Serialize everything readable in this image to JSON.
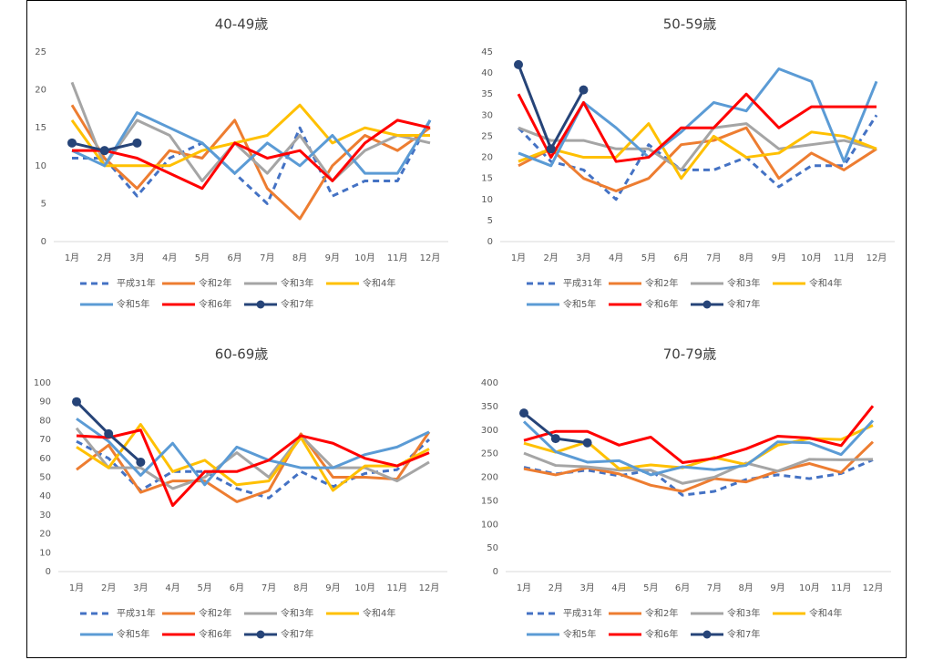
{
  "chart_data": [
    {
      "type": "line",
      "title": "40-49歳",
      "categories": [
        "1月",
        "2月",
        "3月",
        "4月",
        "5月",
        "6月",
        "7月",
        "8月",
        "9月",
        "10月",
        "11月",
        "12月"
      ],
      "ylim": [
        0,
        25
      ],
      "yticks": [
        0,
        5,
        10,
        15,
        20,
        25
      ],
      "series": [
        {
          "name": "平成31年",
          "color": "#4472c4",
          "dashed": true,
          "values": [
            11,
            11,
            6,
            11,
            13,
            9,
            5,
            15,
            6,
            8,
            8,
            16
          ]
        },
        {
          "name": "令和2年",
          "color": "#ed7d31",
          "values": [
            18,
            11,
            7,
            12,
            11,
            16,
            7,
            3,
            10,
            14,
            12,
            15
          ]
        },
        {
          "name": "令和3年",
          "color": "#a5a5a5",
          "values": [
            21,
            10,
            16,
            14,
            8,
            13,
            9,
            14,
            8,
            12,
            14,
            13
          ]
        },
        {
          "name": "令和4年",
          "color": "#ffc000",
          "values": [
            16,
            10,
            10,
            10,
            12,
            13,
            14,
            18,
            13,
            15,
            14,
            14
          ]
        },
        {
          "name": "令和5年",
          "color": "#5b9bd5",
          "values": [
            12,
            10,
            17,
            15,
            13,
            9,
            13,
            10,
            14,
            9,
            9,
            16
          ]
        },
        {
          "name": "令和6年",
          "color": "#ff0000",
          "values": [
            12,
            12,
            11,
            9,
            7,
            13,
            11,
            12,
            8,
            13,
            16,
            15
          ]
        },
        {
          "name": "令和7年",
          "color": "#264478",
          "markers": true,
          "values": [
            13,
            12,
            13,
            null,
            null,
            null,
            null,
            null,
            null,
            null,
            null,
            null
          ]
        }
      ]
    },
    {
      "type": "line",
      "title": "50-59歳",
      "categories": [
        "1月",
        "2月",
        "3月",
        "4月",
        "5月",
        "6月",
        "7月",
        "8月",
        "9月",
        "10月",
        "11月",
        "12月"
      ],
      "ylim": [
        0,
        45
      ],
      "yticks": [
        0,
        5,
        10,
        15,
        20,
        25,
        30,
        35,
        40,
        45
      ],
      "series": [
        {
          "name": "平成31年",
          "color": "#4472c4",
          "dashed": true,
          "values": [
            27,
            19,
            17,
            10,
            23,
            17,
            17,
            20,
            13,
            18,
            18,
            30
          ]
        },
        {
          "name": "令和2年",
          "color": "#ed7d31",
          "values": [
            18,
            22,
            15,
            12,
            15,
            23,
            24,
            27,
            15,
            21,
            17,
            22
          ]
        },
        {
          "name": "令和3年",
          "color": "#a5a5a5",
          "values": [
            27,
            24,
            24,
            22,
            22,
            17,
            27,
            28,
            22,
            23,
            24,
            22
          ]
        },
        {
          "name": "令和4年",
          "color": "#ffc000",
          "values": [
            19,
            22,
            20,
            20,
            28,
            15,
            25,
            20,
            21,
            26,
            25,
            22
          ]
        },
        {
          "name": "令和5年",
          "color": "#5b9bd5",
          "values": [
            21,
            18,
            33,
            27,
            20,
            26,
            33,
            31,
            41,
            38,
            19,
            38
          ]
        },
        {
          "name": "令和6年",
          "color": "#ff0000",
          "values": [
            35,
            20,
            33,
            19,
            20,
            27,
            27,
            35,
            27,
            32,
            32,
            32
          ]
        },
        {
          "name": "令和7年",
          "color": "#264478",
          "markers": true,
          "values": [
            42,
            22,
            36,
            null,
            null,
            null,
            null,
            null,
            null,
            null,
            null,
            null
          ]
        }
      ]
    },
    {
      "type": "line",
      "title": "60-69歳",
      "categories": [
        "1月",
        "2月",
        "3月",
        "4月",
        "5月",
        "6月",
        "7月",
        "8月",
        "9月",
        "10月",
        "11月",
        "12月"
      ],
      "ylim": [
        0,
        100
      ],
      "yticks": [
        0,
        10,
        20,
        30,
        40,
        50,
        60,
        70,
        80,
        90,
        100
      ],
      "series": [
        {
          "name": "平成31年",
          "color": "#4472c4",
          "dashed": true,
          "values": [
            69,
            60,
            43,
            53,
            53,
            44,
            39,
            53,
            45,
            52,
            54,
            70
          ]
        },
        {
          "name": "令和2年",
          "color": "#ed7d31",
          "values": [
            54,
            67,
            42,
            48,
            48,
            37,
            43,
            73,
            50,
            50,
            49,
            74
          ]
        },
        {
          "name": "令和3年",
          "color": "#a5a5a5",
          "values": [
            76,
            55,
            55,
            44,
            50,
            63,
            50,
            72,
            55,
            55,
            48,
            58
          ]
        },
        {
          "name": "令和4年",
          "color": "#ffc000",
          "values": [
            66,
            55,
            78,
            53,
            59,
            46,
            48,
            71,
            43,
            56,
            56,
            65
          ]
        },
        {
          "name": "令和5年",
          "color": "#5b9bd5",
          "values": [
            81,
            69,
            51,
            68,
            46,
            66,
            59,
            55,
            55,
            62,
            66,
            74
          ]
        },
        {
          "name": "令和6年",
          "color": "#ff0000",
          "values": [
            72,
            71,
            75,
            35,
            53,
            53,
            59,
            72,
            68,
            60,
            56,
            63
          ]
        },
        {
          "name": "令和7年",
          "color": "#264478",
          "markers": true,
          "values": [
            90,
            73,
            58,
            null,
            null,
            null,
            null,
            null,
            null,
            null,
            null,
            null
          ]
        }
      ]
    },
    {
      "type": "line",
      "title": "70-79歳",
      "categories": [
        "1月",
        "2月",
        "3月",
        "4月",
        "5月",
        "6月",
        "7月",
        "8月",
        "9月",
        "10月",
        "11月",
        "12月"
      ],
      "ylim": [
        0,
        400
      ],
      "yticks": [
        0,
        50,
        100,
        150,
        200,
        250,
        300,
        350,
        400
      ],
      "series": [
        {
          "name": "平成31年",
          "color": "#4472c4",
          "dashed": true,
          "values": [
            221,
            207,
            215,
            203,
            215,
            162,
            170,
            195,
            205,
            197,
            208,
            237
          ]
        },
        {
          "name": "令和2年",
          "color": "#ed7d31",
          "values": [
            218,
            205,
            220,
            207,
            183,
            170,
            197,
            190,
            213,
            229,
            210,
            275
          ]
        },
        {
          "name": "令和3年",
          "color": "#a5a5a5",
          "values": [
            251,
            225,
            222,
            215,
            215,
            187,
            200,
            230,
            213,
            238,
            237,
            238
          ]
        },
        {
          "name": "令和4年",
          "color": "#ffc000",
          "values": [
            272,
            253,
            275,
            218,
            226,
            220,
            242,
            227,
            268,
            282,
            280,
            310
          ]
        },
        {
          "name": "令和5年",
          "color": "#5b9bd5",
          "values": [
            318,
            254,
            232,
            235,
            205,
            222,
            216,
            225,
            275,
            273,
            248,
            320
          ]
        },
        {
          "name": "令和6年",
          "color": "#ff0000",
          "values": [
            278,
            297,
            297,
            268,
            285,
            231,
            240,
            260,
            287,
            283,
            267,
            351
          ]
        },
        {
          "name": "令和7年",
          "color": "#264478",
          "markers": true,
          "values": [
            336,
            282,
            273,
            null,
            null,
            null,
            null,
            null,
            null,
            null,
            null,
            null
          ]
        }
      ]
    }
  ]
}
